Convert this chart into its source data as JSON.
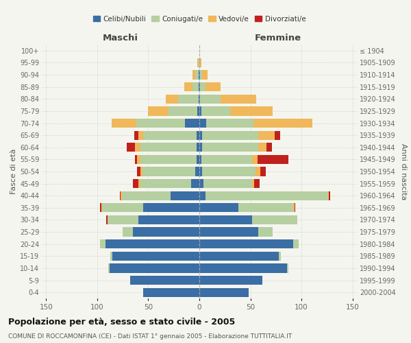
{
  "age_groups": [
    "0-4",
    "5-9",
    "10-14",
    "15-19",
    "20-24",
    "25-29",
    "30-34",
    "35-39",
    "40-44",
    "45-49",
    "50-54",
    "55-59",
    "60-64",
    "65-69",
    "70-74",
    "75-79",
    "80-84",
    "85-89",
    "90-94",
    "95-99",
    "100+"
  ],
  "birth_years": [
    "2000-2004",
    "1995-1999",
    "1990-1994",
    "1985-1989",
    "1980-1984",
    "1975-1979",
    "1970-1974",
    "1965-1969",
    "1960-1964",
    "1955-1959",
    "1950-1954",
    "1945-1949",
    "1940-1944",
    "1935-1939",
    "1930-1934",
    "1925-1929",
    "1920-1924",
    "1915-1919",
    "1910-1914",
    "1905-1909",
    "≤ 1904"
  ],
  "maschi": {
    "celibi": [
      55,
      68,
      88,
      85,
      92,
      65,
      60,
      55,
      28,
      8,
      4,
      3,
      3,
      3,
      14,
      2,
      1,
      1,
      1,
      0,
      0
    ],
    "coniugati": [
      0,
      0,
      1,
      2,
      5,
      10,
      30,
      40,
      48,
      50,
      52,
      55,
      55,
      52,
      48,
      28,
      20,
      6,
      3,
      1,
      0
    ],
    "vedovi": [
      0,
      0,
      0,
      0,
      0,
      0,
      0,
      1,
      1,
      2,
      2,
      3,
      5,
      5,
      24,
      20,
      12,
      8,
      3,
      1,
      0
    ],
    "divorziati": [
      0,
      0,
      0,
      0,
      0,
      0,
      1,
      1,
      1,
      5,
      3,
      2,
      8,
      4,
      0,
      0,
      0,
      0,
      0,
      0,
      0
    ]
  },
  "femmine": {
    "nubili": [
      48,
      62,
      86,
      78,
      92,
      58,
      52,
      38,
      6,
      4,
      3,
      2,
      3,
      3,
      7,
      2,
      1,
      1,
      1,
      0,
      0
    ],
    "coniugate": [
      0,
      0,
      1,
      2,
      5,
      14,
      44,
      54,
      120,
      48,
      52,
      50,
      55,
      55,
      46,
      28,
      20,
      5,
      2,
      1,
      0
    ],
    "vedove": [
      0,
      0,
      0,
      0,
      0,
      0,
      0,
      1,
      1,
      2,
      5,
      5,
      8,
      16,
      58,
      42,
      35,
      15,
      5,
      1,
      0
    ],
    "divorziate": [
      0,
      0,
      0,
      0,
      0,
      0,
      0,
      1,
      1,
      5,
      5,
      30,
      5,
      5,
      0,
      0,
      0,
      0,
      0,
      0,
      0
    ]
  },
  "colors": {
    "celibi": "#3a6ea5",
    "coniugati": "#b5cfa0",
    "vedovi": "#f0b85a",
    "divorziati": "#c0211c"
  },
  "xlim": 155,
  "title": "Popolazione per età, sesso e stato civile - 2005",
  "subtitle": "COMUNE DI ROCCAMONFINA (CE) - Dati ISTAT 1° gennaio 2005 - Elaborazione TUTTITALIA.IT",
  "ylabel_left": "Fasce di età",
  "ylabel_right": "Anni di nascita",
  "bg_color": "#f5f5f0",
  "plot_bg": "#f5f5f0",
  "grid_color": "#cccccc"
}
